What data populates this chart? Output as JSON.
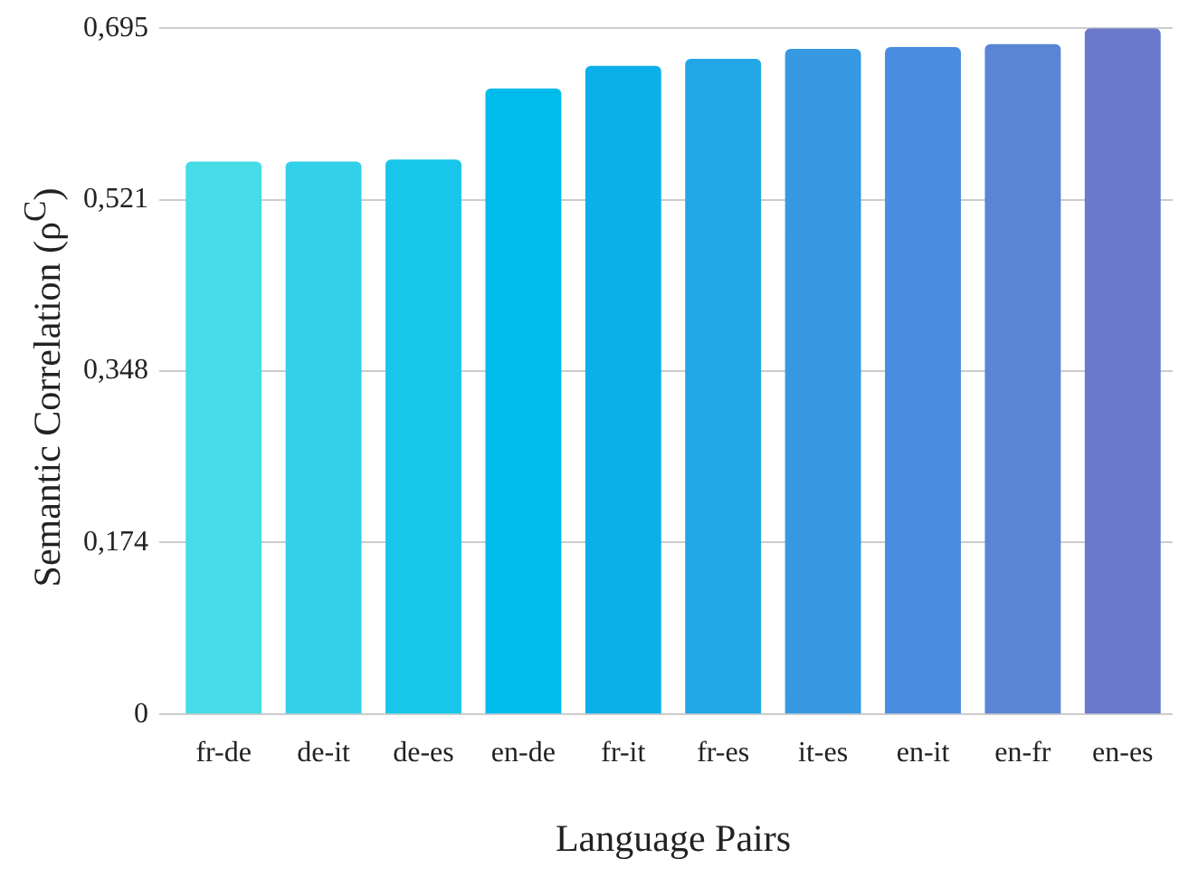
{
  "chart_data": {
    "type": "bar",
    "xlabel": "Language Pairs",
    "ylabel": "Semantic Correlation (ρ$^{C}$)",
    "categories": [
      "fr-de",
      "de-it",
      "de-es",
      "en-de",
      "fr-it",
      "fr-es",
      "it-es",
      "en-it",
      "en-fr",
      "en-es"
    ],
    "values": [
      0.56,
      0.56,
      0.562,
      0.634,
      0.657,
      0.664,
      0.674,
      0.676,
      0.679,
      0.695
    ],
    "colors": [
      "#45dbe7",
      "#33d0ea",
      "#17c6ea",
      "#00bcec",
      "#0cb0e8",
      "#22a6e6",
      "#3799e2",
      "#488de0",
      "#5a84d6",
      "#6a79cc"
    ],
    "ylim": [
      0,
      0.695
    ],
    "yticks": [
      0,
      {
        "value": 0.174,
        "label": "0,174"
      },
      {
        "value": 0.348,
        "label": "0,348"
      },
      {
        "value": 0.521,
        "label": "0,521"
      },
      {
        "value": 0.695,
        "label": "0,695"
      }
    ],
    "grid": "y",
    "legend": false
  }
}
